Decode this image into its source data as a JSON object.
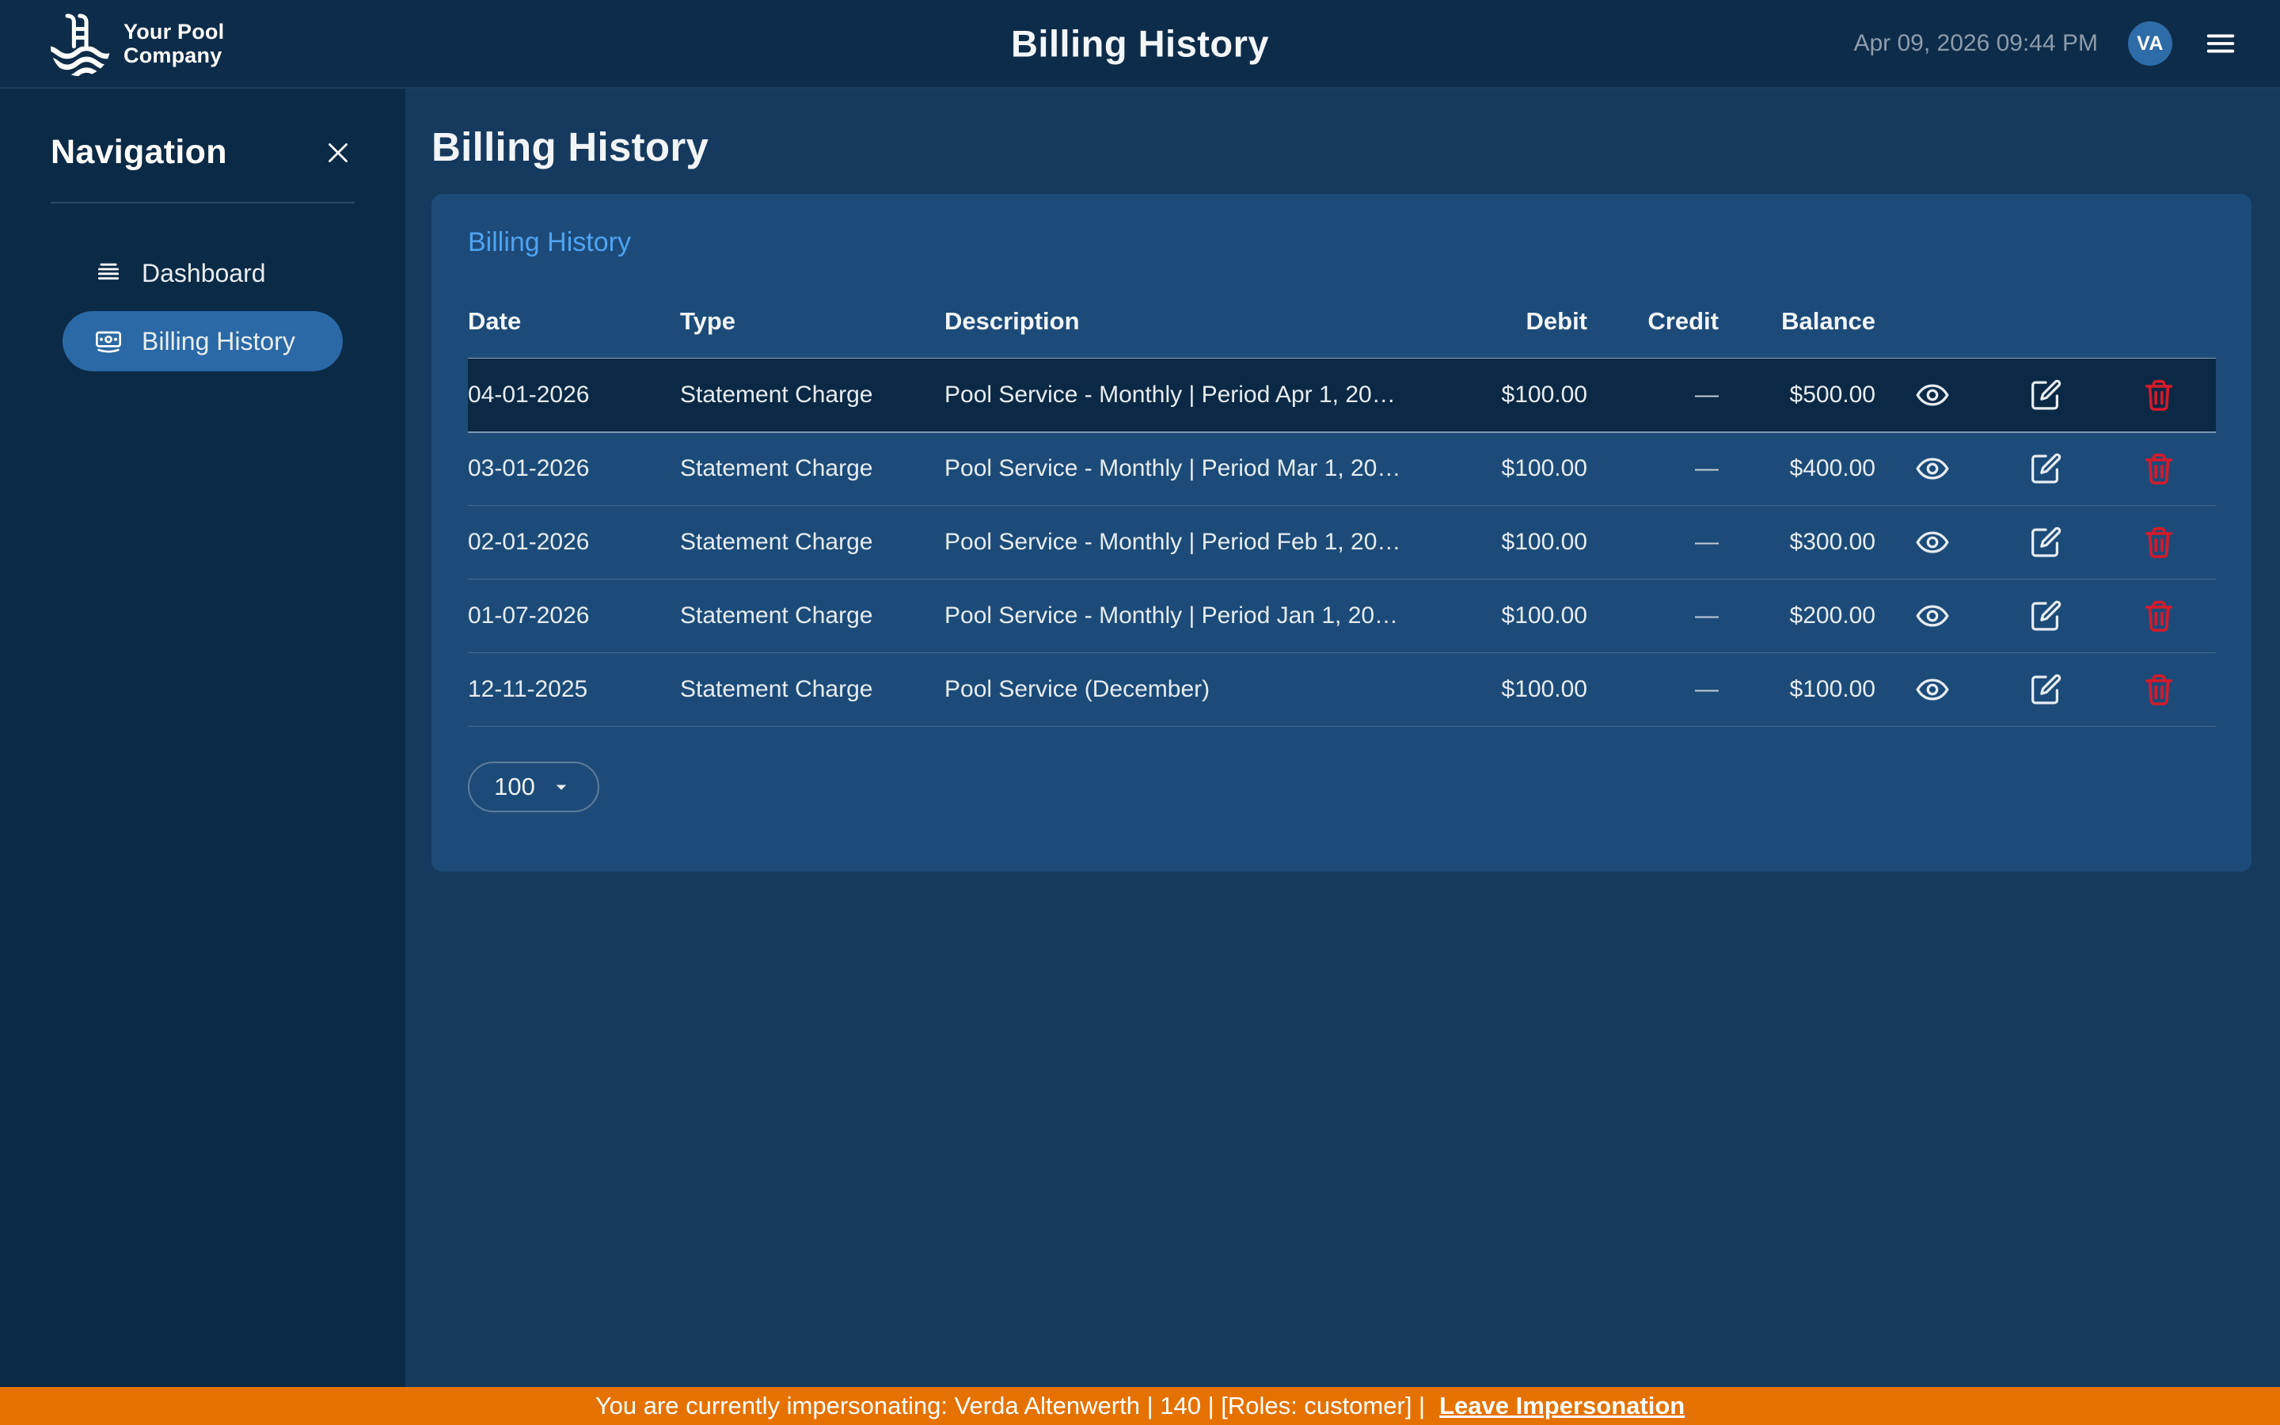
{
  "topbar": {
    "logo_line1": "Your Pool",
    "logo_line2": "Company",
    "logo_icon": "pool-ladder-waves-icon",
    "title": "Billing History",
    "datetime": "Apr 09, 2026 09:44 PM",
    "avatar_initials": "VA",
    "menu_icon": "hamburger-icon"
  },
  "sidebar": {
    "title": "Navigation",
    "close_icon": "close-icon",
    "items": [
      {
        "label": "Dashboard",
        "icon": "dashboard-rows-icon",
        "active": false
      },
      {
        "label": "Billing History",
        "icon": "billing-cash-icon",
        "active": true
      }
    ]
  },
  "main": {
    "heading": "Billing History",
    "card": {
      "title": "Billing History",
      "table": {
        "columns": [
          "Date",
          "Type",
          "Description",
          "Debit",
          "Credit",
          "Balance"
        ],
        "rows": [
          {
            "date": "04-01-2026",
            "type": "Statement Charge",
            "description": "Pool Service - Monthly | Period Apr 1, 20…",
            "debit": "$100.00",
            "credit": "—",
            "balance": "$500.00",
            "highlighted": true
          },
          {
            "date": "03-01-2026",
            "type": "Statement Charge",
            "description": "Pool Service - Monthly | Period Mar 1, 20…",
            "debit": "$100.00",
            "credit": "—",
            "balance": "$400.00",
            "highlighted": false
          },
          {
            "date": "02-01-2026",
            "type": "Statement Charge",
            "description": "Pool Service - Monthly | Period Feb 1, 20…",
            "debit": "$100.00",
            "credit": "—",
            "balance": "$300.00",
            "highlighted": false
          },
          {
            "date": "01-07-2026",
            "type": "Statement Charge",
            "description": "Pool Service - Monthly | Period Jan 1, 20…",
            "debit": "$100.00",
            "credit": "—",
            "balance": "$200.00",
            "highlighted": false
          },
          {
            "date": "12-11-2025",
            "type": "Statement Charge",
            "description": "Pool Service (December)",
            "debit": "$100.00",
            "credit": "—",
            "balance": "$100.00",
            "highlighted": false
          }
        ],
        "row_actions": [
          {
            "name": "view",
            "icon": "eye-icon"
          },
          {
            "name": "edit",
            "icon": "edit-icon"
          },
          {
            "name": "delete",
            "icon": "trash-icon"
          }
        ]
      },
      "pagination": {
        "page_size": "100",
        "caret_icon": "caret-down-icon"
      }
    }
  },
  "impersonation_banner": {
    "text": "You are currently impersonating: Verda Altenwerth | 140 | [Roles: customer] |",
    "link_label": "Leave Impersonation"
  },
  "colors": {
    "accent_blue": "#4fa3f0",
    "card_bg": "#1d4b79",
    "highlight_row": "#0b2944",
    "active_nav": "#2a69a5",
    "avatar_bg": "#2e6ca8",
    "danger_red": "#d31b2b",
    "banner_orange": "#e57200"
  }
}
